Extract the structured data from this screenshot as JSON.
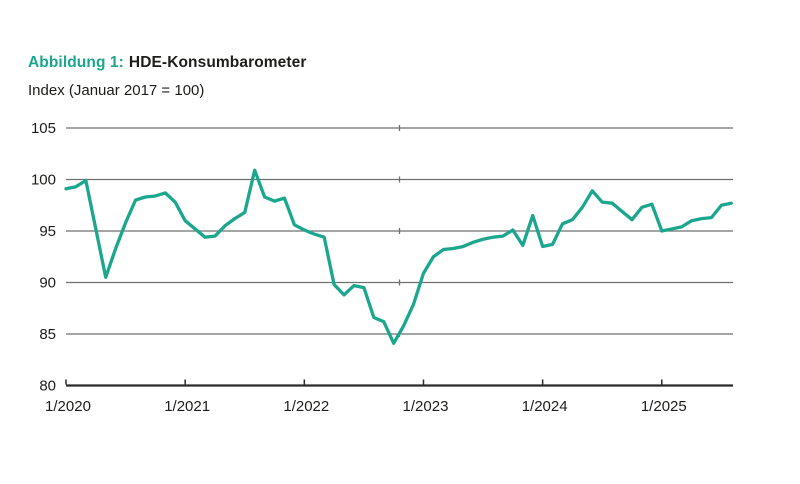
{
  "figure": {
    "label": "Abbildung 1:",
    "title": "HDE-Konsumbarometer",
    "subtitle": "Index (Januar 2017 = 100)"
  },
  "colors": {
    "accent": "#1BA78E",
    "line": "#1BA78E",
    "grid": "#6f6f6f",
    "axis": "#2b2b2b",
    "text": "#1d1d1b",
    "background": "#ffffff"
  },
  "chart_data": {
    "type": "line",
    "title": "HDE-Konsumbarometer",
    "subtitle": "Index (Januar 2017 = 100)",
    "ylabel": "Index (Januar 2017 = 100)",
    "xlabel": "",
    "ylim": [
      80,
      105
    ],
    "y_ticks": [
      105,
      100,
      95,
      90,
      85,
      80
    ],
    "x_tick_labels": [
      "1/2020",
      "1/2021",
      "1/2022",
      "1/2023",
      "1/2024",
      "1/2025"
    ],
    "x_tick_every": 12,
    "grid": "horizontal",
    "legend": "none",
    "frequency": "monthly",
    "x": [
      "1/2020",
      "2/2020",
      "3/2020",
      "4/2020",
      "5/2020",
      "6/2020",
      "7/2020",
      "8/2020",
      "9/2020",
      "10/2020",
      "11/2020",
      "12/2020",
      "1/2021",
      "2/2021",
      "3/2021",
      "4/2021",
      "5/2021",
      "6/2021",
      "7/2021",
      "8/2021",
      "9/2021",
      "10/2021",
      "11/2021",
      "12/2021",
      "1/2022",
      "2/2022",
      "3/2022",
      "4/2022",
      "5/2022",
      "6/2022",
      "7/2022",
      "8/2022",
      "9/2022",
      "10/2022",
      "11/2022",
      "12/2022",
      "1/2023",
      "2/2023",
      "3/2023",
      "4/2023",
      "5/2023",
      "6/2023",
      "7/2023",
      "8/2023",
      "9/2023",
      "10/2023",
      "11/2023",
      "12/2023",
      "1/2024",
      "2/2024",
      "3/2024",
      "4/2024",
      "5/2024",
      "6/2024",
      "7/2024",
      "8/2024",
      "9/2024",
      "10/2024",
      "11/2024",
      "12/2024",
      "1/2025",
      "2/2025",
      "3/2025",
      "4/2025",
      "5/2025",
      "6/2025",
      "7/2025",
      "8/2025"
    ],
    "values": [
      99.1,
      99.3,
      99.9,
      95.2,
      90.5,
      93.3,
      95.8,
      98.0,
      98.3,
      98.4,
      98.7,
      97.8,
      96.0,
      95.2,
      94.4,
      94.5,
      95.5,
      96.2,
      96.8,
      100.9,
      98.3,
      97.9,
      98.2,
      95.6,
      95.1,
      94.7,
      94.4,
      89.8,
      88.8,
      89.7,
      89.5,
      86.6,
      86.2,
      84.1,
      85.8,
      87.9,
      90.9,
      92.5,
      93.2,
      93.3,
      93.5,
      93.9,
      94.2,
      94.4,
      94.5,
      95.1,
      93.6,
      96.5,
      93.5,
      93.7,
      95.7,
      96.1,
      97.3,
      98.9,
      97.8,
      97.7,
      96.9,
      96.1,
      97.3,
      97.6,
      95.0,
      95.2,
      95.4,
      96.0,
      96.2,
      96.3,
      97.5,
      97.7
    ]
  }
}
